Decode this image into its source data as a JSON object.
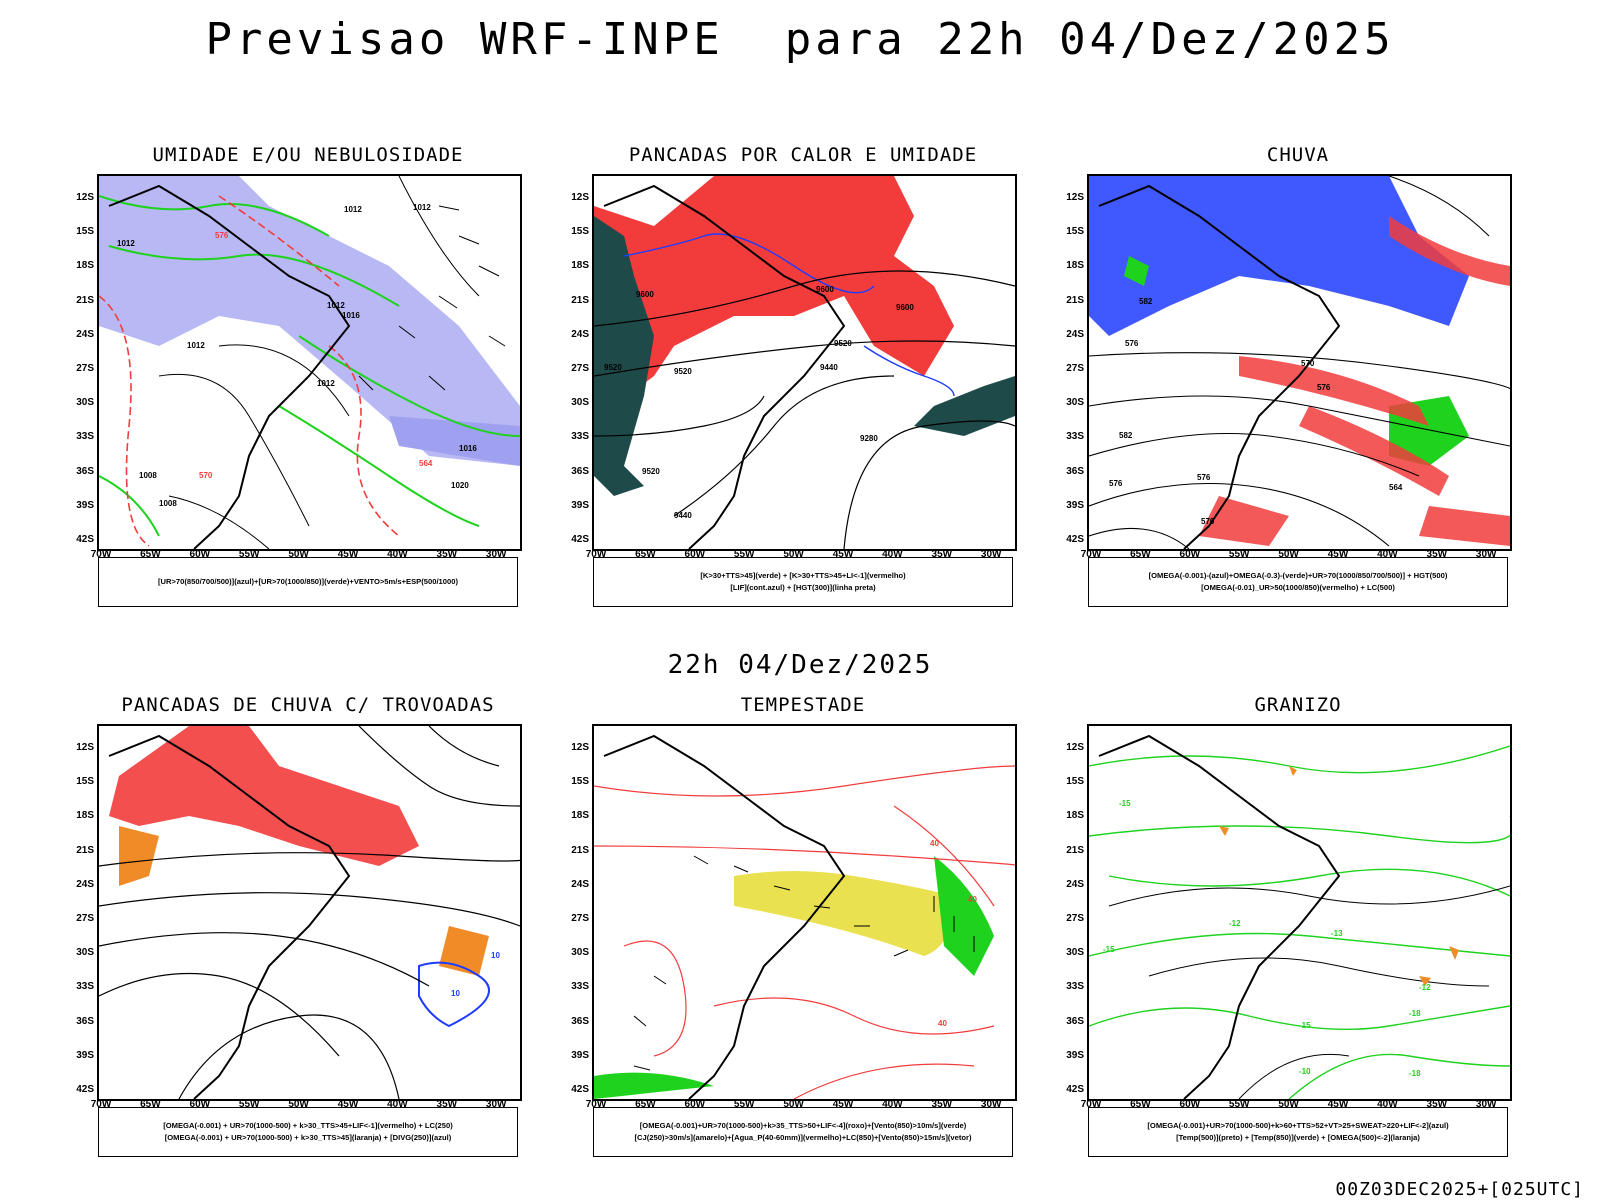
{
  "header": {
    "title": "Previsao WRF-INPE  para 22h 04/Dez/2025",
    "mid_date": "22h 04/Dez/2025",
    "footer": "00Z03DEC2025+[025UTC]"
  },
  "axes": {
    "lat_labels": [
      "12S",
      "15S",
      "18S",
      "21S",
      "24S",
      "27S",
      "30S",
      "33S",
      "36S",
      "39S",
      "42S"
    ],
    "lon_labels": [
      "70W",
      "65W",
      "60W",
      "55W",
      "50W",
      "45W",
      "40W",
      "35W",
      "30W"
    ]
  },
  "panels": [
    {
      "id": "umidade",
      "title": "UMIDADE E/OU NEBULOSIDADE",
      "legend": [
        "[UR>70(850/700/500)](azul)+[UR>70(1000/850)](verde)+VENTO>5m/s+ESP(500/1000)"
      ],
      "contour_labels": [
        "1012",
        "1012",
        "1012",
        "1012",
        "1016",
        "1012",
        "1012",
        "1016",
        "1008",
        "1008",
        "1020",
        "576",
        "570",
        "564"
      ]
    },
    {
      "id": "pancadas-calor",
      "title": "PANCADAS POR CALOR E UMIDADE",
      "legend": [
        "[K>30+TTS>45](verde) + [K>30+TTS>45+LI<-1](vermelho)",
        "[LIF](cont.azul) + [HGT(300)](linha preta)"
      ],
      "contour_labels": [
        "9600",
        "9600",
        "9600",
        "9520",
        "9520",
        "9440",
        "9520",
        "9280",
        "9520",
        "9440"
      ]
    },
    {
      "id": "chuva",
      "title": "CHUVA",
      "legend": [
        "[OMEGA(-0.001)-(azul)+OMEGA(-0.3)-(verde)+UR>70(1000/850/700/500)] + HGT(500)",
        "[OMEGA(-0.01)_UR>50(1000/850)(vermelho) + LC(500)"
      ],
      "contour_labels": [
        "582",
        "576",
        "570",
        "576",
        "582",
        "576",
        "564",
        "576",
        "570"
      ]
    },
    {
      "id": "trovoadas",
      "title": "PANCADAS DE CHUVA C/ TROVOADAS",
      "legend": [
        "[OMEGA(-0.001) + UR>70(1000-500) + k>30_TTS>45+LIF<-1](vermelho) + LC(250)",
        "[OMEGA(-0.001) + UR>70(1000-500) + k>30_TTS>45](laranja) + [DIVG(250)](azul)"
      ],
      "contour_labels": [
        "10",
        "10"
      ]
    },
    {
      "id": "tempestade",
      "title": "TEMPESTADE",
      "legend": [
        "[OMEGA(-0.001)+UR>70(1000-500)+k>35_TTS>50+LIF<-4](roxo)+[Vento(850)>10m/s](verde)",
        "[CJ(250)>30m/s](amarelo)+[Agua_P(40-60mm)](vermelho)+LC(850)+[Vento(850)>15m/s](vetor)"
      ],
      "contour_labels": [
        "40",
        "40",
        "40"
      ]
    },
    {
      "id": "granizo",
      "title": "GRANIZO",
      "legend": [
        "[OMEGA(-0.001)+UR>70(1000-500)+k>60+TTS>52+VT>25+SWEAT>220+LIF<-2](azul)",
        "[Temp(500)](preto) + [Temp(850)](verde) + [OMEGA(500)<-2](laranja)"
      ],
      "contour_labels": [
        "-15",
        "-12",
        "-13",
        "-15",
        "-12",
        "-18",
        "-15",
        "-10",
        "-18"
      ]
    }
  ],
  "colors": {
    "red": "#f23c3c",
    "green": "#1ed21e",
    "blue": "#1e3cff",
    "lavender": "#a0a0f0",
    "dark_teal": "#1e4a4a",
    "yellow": "#e6dc32",
    "orange": "#f08c28",
    "line": "#000000"
  }
}
